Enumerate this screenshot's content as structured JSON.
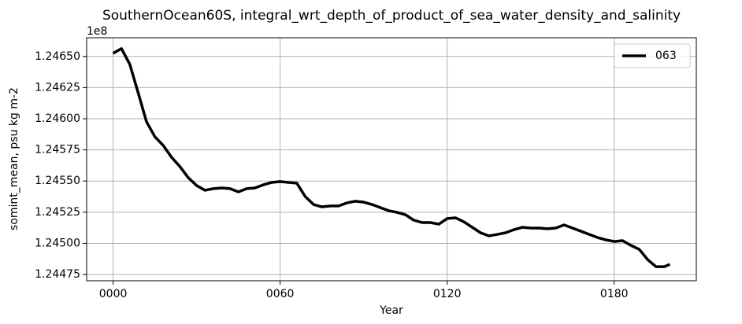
{
  "chart_data": {
    "type": "line",
    "title": "SouthernOcean60S, integral_wrt_depth_of_product_of_sea_water_density_and_salinity",
    "x_label": "Year",
    "y_label": "somint_mean, psu kg m-2",
    "y_offset_label": "1e8",
    "x": [
      0,
      3,
      6,
      9,
      12,
      15,
      18,
      21,
      24,
      27,
      30,
      33,
      36,
      39,
      42,
      45,
      48,
      51,
      54,
      57,
      60,
      63,
      66,
      69,
      72,
      75,
      78,
      81,
      84,
      87,
      90,
      93,
      96,
      99,
      102,
      105,
      108,
      111,
      114,
      117,
      120,
      123,
      126,
      129,
      132,
      135,
      138,
      141,
      144,
      147,
      150,
      153,
      156,
      159,
      162,
      165,
      168,
      171,
      174,
      177,
      180,
      183,
      186,
      189,
      192,
      195,
      198,
      200
    ],
    "series": [
      {
        "name": "063",
        "color": "#000000",
        "values": [
          1.246525,
          1.246563,
          1.246437,
          1.246209,
          1.245976,
          1.245856,
          1.245786,
          1.245691,
          1.245616,
          1.245527,
          1.245464,
          1.245426,
          1.245439,
          1.245445,
          1.245439,
          1.245413,
          1.245439,
          1.245445,
          1.24547,
          1.245489,
          1.245496,
          1.245489,
          1.245483,
          1.245376,
          1.245312,
          1.245293,
          1.2453,
          1.2453,
          1.245325,
          1.245338,
          1.245331,
          1.245312,
          1.245287,
          1.245262,
          1.245249,
          1.24523,
          1.245186,
          1.245167,
          1.245167,
          1.245154,
          1.245199,
          1.245205,
          1.245173,
          1.245129,
          1.245085,
          1.24506,
          1.245072,
          1.245085,
          1.24511,
          1.245129,
          1.245123,
          1.245123,
          1.245117,
          1.245123,
          1.245148,
          1.245123,
          1.245098,
          1.245072,
          1.245047,
          1.245028,
          1.245015,
          1.245022,
          1.244984,
          1.244952,
          1.24487,
          1.244813,
          1.244813,
          1.244832
        ]
      }
    ],
    "xlim": [
      -9.5,
      209.5
    ],
    "xticks": [
      {
        "value": 0,
        "label": "0000"
      },
      {
        "value": 60,
        "label": "0060"
      },
      {
        "value": 120,
        "label": "0120"
      },
      {
        "value": 180,
        "label": "0180"
      }
    ],
    "ylim": [
      1.2447,
      1.24665
    ],
    "yticks": [
      {
        "value": 1.24475,
        "label": "1.24475"
      },
      {
        "value": 1.245,
        "label": "1.24500"
      },
      {
        "value": 1.24525,
        "label": "1.24525"
      },
      {
        "value": 1.2455,
        "label": "1.24550"
      },
      {
        "value": 1.24575,
        "label": "1.24575"
      },
      {
        "value": 1.246,
        "label": "1.24600"
      },
      {
        "value": 1.24625,
        "label": "1.24625"
      },
      {
        "value": 1.2465,
        "label": "1.24650"
      }
    ],
    "grid": true,
    "legend": "upper right"
  }
}
